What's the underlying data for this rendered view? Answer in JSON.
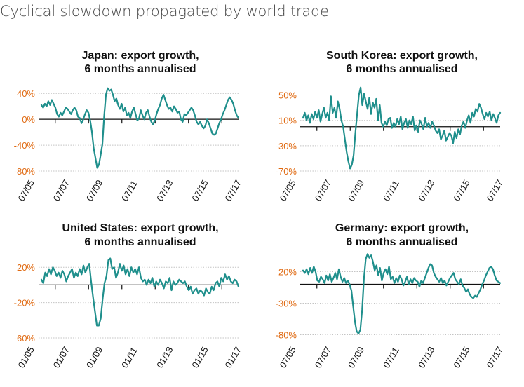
{
  "page_title": "Cyclical slowdown propagated by world trade",
  "chart_data": [
    {
      "type": "line",
      "title_line1": "Japan: export growth,",
      "title_line2": "6 months annualised",
      "ylim": [
        -80,
        50
      ],
      "yticks": [
        40,
        0,
        -40,
        -80
      ],
      "ytick_labels": [
        "40%",
        "0%",
        "-40%",
        "-80%"
      ],
      "baseline": 0,
      "xticks": [
        "07/05",
        "07/07",
        "07/09",
        "07/11",
        "07/13",
        "07/15",
        "07/17"
      ],
      "series": [
        {
          "name": "Export growth",
          "color": "#1f8f8c",
          "values": [
            22,
            18,
            24,
            20,
            28,
            22,
            30,
            24,
            18,
            8,
            4,
            10,
            6,
            12,
            18,
            16,
            12,
            8,
            14,
            18,
            14,
            4,
            2,
            -6,
            0,
            8,
            14,
            10,
            -2,
            -20,
            -45,
            -60,
            -75,
            -70,
            -55,
            -38,
            5,
            38,
            48,
            44,
            46,
            38,
            28,
            32,
            22,
            16,
            24,
            12,
            18,
            6,
            10,
            2,
            12,
            18,
            8,
            -2,
            2,
            14,
            6,
            0,
            10,
            14,
            4,
            -4,
            -8,
            -2,
            8,
            16,
            22,
            32,
            38,
            30,
            22,
            16,
            18,
            12,
            20,
            16,
            10,
            12,
            0,
            -4,
            8,
            6,
            10,
            14,
            18,
            14,
            6,
            -4,
            -8,
            -4,
            -10,
            -14,
            -10,
            0,
            -6,
            -14,
            -22,
            -24,
            -22,
            -14,
            -6,
            0,
            8,
            14,
            22,
            30,
            34,
            30,
            24,
            14,
            6,
            2
          ]
        }
      ]
    },
    {
      "type": "line",
      "title_line1": "South Korea: export growth,",
      "title_line2": "6 months annualised",
      "ylim": [
        -70,
        65
      ],
      "yticks": [
        50,
        10,
        -30,
        -70
      ],
      "ytick_labels": [
        "50%",
        "10%",
        "-30%",
        "-70%"
      ],
      "baseline": 0,
      "xticks": [
        "07/05",
        "07/07",
        "07/09",
        "07/11",
        "07/13",
        "07/15",
        "07/17"
      ],
      "series": [
        {
          "name": "Export growth",
          "color": "#1f8f8c",
          "values": [
            14,
            22,
            10,
            18,
            6,
            20,
            12,
            24,
            14,
            26,
            8,
            20,
            30,
            14,
            22,
            10,
            48,
            22,
            30,
            14,
            40,
            28,
            10,
            0,
            -20,
            -40,
            -55,
            -66,
            -60,
            -45,
            -10,
            20,
            50,
            62,
            34,
            52,
            40,
            28,
            46,
            20,
            38,
            30,
            44,
            10,
            34,
            6,
            0,
            8,
            2,
            12,
            14,
            -2,
            6,
            0,
            12,
            4,
            16,
            -4,
            6,
            12,
            -2,
            10,
            4,
            16,
            -6,
            2,
            -8,
            10,
            4,
            -4,
            14,
            0,
            6,
            -2,
            8,
            2,
            -6,
            -10,
            -4,
            -20,
            -14,
            -6,
            -22,
            -16,
            -10,
            -14,
            -26,
            -8,
            -18,
            -4,
            -12,
            2,
            8,
            -2,
            10,
            18,
            6,
            22,
            16,
            28,
            24,
            36,
            30,
            20,
            12,
            22,
            16,
            24,
            10,
            20,
            14,
            6,
            18,
            22
          ]
        }
      ]
    },
    {
      "type": "line",
      "title_line1": "United States: export growth,",
      "title_line2": "6 months annualised",
      "ylim": [
        -60,
        40
      ],
      "yticks": [
        20,
        -20,
        -60
      ],
      "ytick_labels": [
        "20%",
        "-20%",
        "-60%"
      ],
      "baseline": 0,
      "xticks": [
        "01/05",
        "01/07",
        "01/09",
        "01/11",
        "01/13",
        "01/15",
        "01/17"
      ],
      "series": [
        {
          "name": "Export growth",
          "color": "#1f8f8c",
          "values": [
            6,
            2,
            14,
            10,
            18,
            12,
            20,
            16,
            10,
            14,
            8,
            16,
            12,
            4,
            10,
            14,
            18,
            8,
            14,
            10,
            18,
            12,
            22,
            14,
            20,
            24,
            4,
            -14,
            -30,
            -46,
            -46,
            -38,
            -16,
            2,
            10,
            28,
            30,
            18,
            20,
            8,
            14,
            24,
            16,
            22,
            12,
            18,
            10,
            20,
            14,
            18,
            12,
            20,
            8,
            4,
            6,
            0,
            6,
            2,
            8,
            -2,
            4,
            0,
            6,
            2,
            -4,
            4,
            2,
            8,
            -6,
            4,
            0,
            2,
            6,
            4,
            2,
            4,
            -2,
            -6,
            -2,
            -10,
            -6,
            -4,
            -10,
            -6,
            -8,
            -12,
            -4,
            -8,
            -10,
            -2,
            -6,
            2,
            4,
            -2,
            8,
            4,
            12,
            6,
            10,
            4,
            2,
            6,
            4,
            -2
          ]
        }
      ]
    },
    {
      "type": "line",
      "title_line1": "Germany: export growth,",
      "title_line2": "6 months annualised",
      "ylim": [
        -85,
        55
      ],
      "yticks": [
        20,
        -30,
        -80
      ],
      "ytick_labels": [
        "20%",
        "-30%",
        "-80%"
      ],
      "baseline": 0,
      "xticks": [
        "07/05",
        "07/07",
        "07/09",
        "07/11",
        "07/13",
        "07/15",
        "07/17"
      ],
      "series": [
        {
          "name": "Export growth",
          "color": "#1f8f8c",
          "values": [
            22,
            18,
            24,
            16,
            26,
            18,
            28,
            20,
            6,
            4,
            12,
            8,
            2,
            14,
            6,
            16,
            4,
            10,
            18,
            8,
            24,
            12,
            4,
            10,
            2,
            6,
            0,
            -10,
            -35,
            -60,
            -75,
            -78,
            -72,
            -40,
            10,
            40,
            48,
            42,
            46,
            36,
            22,
            30,
            14,
            26,
            6,
            18,
            24,
            16,
            28,
            8,
            12,
            2,
            10,
            4,
            14,
            8,
            -2,
            4,
            12,
            0,
            8,
            2,
            10,
            6,
            4,
            -4,
            6,
            2,
            10,
            18,
            26,
            32,
            30,
            18,
            12,
            8,
            4,
            10,
            2,
            6,
            -2,
            4,
            10,
            14,
            18,
            8,
            4,
            0,
            8,
            -2,
            -6,
            -12,
            -8,
            -16,
            -20,
            -22,
            -18,
            -20,
            -14,
            -8,
            0,
            6,
            14,
            20,
            26,
            28,
            24,
            14,
            6,
            4,
            2
          ]
        }
      ]
    }
  ]
}
